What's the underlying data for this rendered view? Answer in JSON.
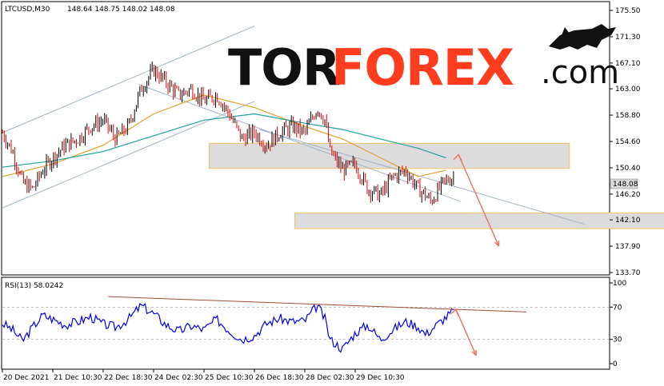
{
  "header": {
    "symbol": "LTCUSD,M30",
    "quote": "148.64 148.75 148.02 148.08"
  },
  "rsi_header": "RSI(13) 58.0242",
  "logo": {
    "part1": "TOR",
    "part2": "FOREX",
    "part3": ".com"
  },
  "colors": {
    "bull": "#000000",
    "bear": "#e00000",
    "ma_fast": "#e0a030",
    "ma_slow": "#1f9f9f",
    "channel": "#9fb4c8",
    "zone_fill": "#dcdcdc",
    "zone_border": "#f0c36e",
    "arrow": "#f07060",
    "rsi_line": "#0000ee",
    "rsi_trend": "#a04a3a",
    "logo_orange": "#ff3c1e"
  },
  "chart_data": [
    {
      "type": "candlestick",
      "symbol": "LTCUSD",
      "timeframe": "M30",
      "title": "LTCUSD,M30",
      "last": {
        "open": 148.64,
        "high": 148.75,
        "low": 148.02,
        "close": 148.08
      },
      "price_label": "148.08",
      "ylim": [
        133.7,
        175.5
      ],
      "y_ticks": [
        "175.50",
        "171.30",
        "167.10",
        "163.00",
        "158.80",
        "154.60",
        "150.40",
        "146.20",
        "142.10",
        "137.90",
        "133.70"
      ],
      "x_ticks": [
        "20 Dec 2021",
        "21 Dec 10:30",
        "22 Dec 18:30",
        "24 Dec 02:30",
        "25 Dec 10:30",
        "26 Dec 18:30",
        "28 Dec 02:30",
        "29 Dec 10:30"
      ],
      "price_path": [
        [
          0,
          156
        ],
        [
          0.4,
          153
        ],
        [
          0.8,
          148
        ],
        [
          1.2,
          147
        ],
        [
          1.6,
          150
        ],
        [
          2.0,
          152
        ],
        [
          2.5,
          154
        ],
        [
          3.0,
          155
        ],
        [
          3.5,
          157
        ],
        [
          4.0,
          158
        ],
        [
          4.5,
          155
        ],
        [
          5.0,
          157
        ],
        [
          5.5,
          163
        ],
        [
          6.0,
          166
        ],
        [
          6.5,
          164
        ],
        [
          7.0,
          162
        ],
        [
          7.5,
          163
        ],
        [
          8.0,
          161
        ],
        [
          8.5,
          162
        ],
        [
          9.0,
          159
        ],
        [
          9.5,
          155
        ],
        [
          10.0,
          156
        ],
        [
          10.5,
          154
        ],
        [
          11.0,
          156
        ],
        [
          11.5,
          157
        ],
        [
          12.0,
          156
        ],
        [
          12.5,
          160
        ],
        [
          12.8,
          158
        ],
        [
          13.0,
          153
        ],
        [
          13.5,
          150
        ],
        [
          14.0,
          151
        ],
        [
          14.5,
          147
        ],
        [
          15.0,
          146
        ],
        [
          15.5,
          149
        ],
        [
          16.0,
          150
        ],
        [
          16.5,
          147
        ],
        [
          16.8,
          146
        ],
        [
          17.0,
          145
        ],
        [
          17.5,
          148
        ],
        [
          17.9,
          149
        ]
      ],
      "moving_averages": [
        {
          "path": [
            [
              0,
              149
            ],
            [
              2,
              151
            ],
            [
              4,
              154
            ],
            [
              6,
              159
            ],
            [
              8,
              162
            ],
            [
              10,
              160
            ],
            [
              12,
              157
            ],
            [
              13.5,
              155
            ],
            [
              15,
              152
            ],
            [
              16.5,
              149
            ],
            [
              17.6,
              150
            ]
          ]
        },
        {
          "path": [
            [
              0,
              150.5
            ],
            [
              2,
              151.5
            ],
            [
              4,
              153
            ],
            [
              6,
              155.5
            ],
            [
              8,
              158
            ],
            [
              10,
              159
            ],
            [
              12,
              157.5
            ],
            [
              13.5,
              156.5
            ],
            [
              15,
              155
            ],
            [
              16.5,
              153.5
            ],
            [
              17.6,
              152
            ]
          ]
        }
      ],
      "channels": [
        {
          "start": [
            0,
            156
          ],
          "end": [
            10,
            173
          ]
        },
        {
          "start": [
            0,
            144
          ],
          "end": [
            10,
            161
          ]
        },
        {
          "start": [
            5.4,
            163.7
          ],
          "end": [
            18.2,
            145
          ]
        },
        {
          "start": [
            10.2,
            156.5
          ],
          "end": [
            23.1,
            141.4
          ]
        }
      ],
      "zones": [
        {
          "x": [
            8.2,
            22.5
          ],
          "y": [
            150.3,
            154.3
          ]
        },
        {
          "x": [
            11.6,
            26.7
          ],
          "y": [
            140.7,
            143.2
          ]
        }
      ],
      "arrows": [
        {
          "from": [
            18.1,
            152.5
          ],
          "to": [
            19.7,
            137.9
          ]
        }
      ]
    },
    {
      "type": "line",
      "title": "RSI(13) 58.0242",
      "last_value": 58.0242,
      "ylim": [
        0,
        100
      ],
      "y_ticks": [
        "100",
        "70",
        "30",
        "0"
      ],
      "levels": [
        70,
        30
      ],
      "rsi_path": [
        [
          0,
          50
        ],
        [
          0.4,
          42
        ],
        [
          0.8,
          28
        ],
        [
          1.2,
          45
        ],
        [
          1.6,
          60
        ],
        [
          2.0,
          55
        ],
        [
          2.5,
          48
        ],
        [
          3.0,
          52
        ],
        [
          3.5,
          58
        ],
        [
          4.0,
          49
        ],
        [
          4.5,
          45
        ],
        [
          5.0,
          55
        ],
        [
          5.5,
          72
        ],
        [
          6.0,
          62
        ],
        [
          6.5,
          48
        ],
        [
          7.0,
          40
        ],
        [
          7.5,
          47
        ],
        [
          8.0,
          42
        ],
        [
          8.5,
          55
        ],
        [
          9.0,
          41
        ],
        [
          9.5,
          30
        ],
        [
          10.0,
          35
        ],
        [
          10.5,
          50
        ],
        [
          11.0,
          56
        ],
        [
          11.5,
          52
        ],
        [
          12.0,
          53
        ],
        [
          12.5,
          72
        ],
        [
          12.8,
          55
        ],
        [
          13.0,
          30
        ],
        [
          13.5,
          18
        ],
        [
          14.0,
          38
        ],
        [
          14.5,
          48
        ],
        [
          15.0,
          30
        ],
        [
          15.5,
          42
        ],
        [
          16.0,
          52
        ],
        [
          16.5,
          46
        ],
        [
          16.8,
          36
        ],
        [
          17.0,
          42
        ],
        [
          17.5,
          55
        ],
        [
          17.9,
          65
        ]
      ],
      "trendline": {
        "start": [
          4.2,
          83
        ],
        "end": [
          20.8,
          64
        ]
      },
      "arrows": [
        {
          "from": [
            18,
            67
          ],
          "to": [
            18.8,
            10
          ]
        }
      ]
    }
  ]
}
